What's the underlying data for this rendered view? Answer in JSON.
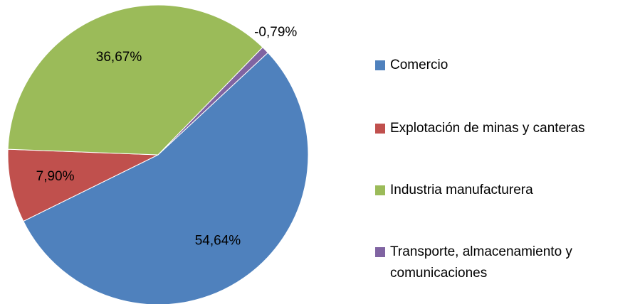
{
  "chart_data": {
    "type": "pie",
    "categories": [
      "Comercio",
      "Explotación de minas y canteras",
      "Industria manufacturera",
      "Transporte, almacenamiento y comunicaciones"
    ],
    "values": [
      54.64,
      7.9,
      36.67,
      -0.79
    ],
    "value_labels": [
      "54,64%",
      "7,90%",
      "36,67%",
      "-0,79%"
    ],
    "colors": [
      "#4f81bd",
      "#c0504d",
      "#9bbb59",
      "#8064a2"
    ],
    "legend": "right"
  }
}
